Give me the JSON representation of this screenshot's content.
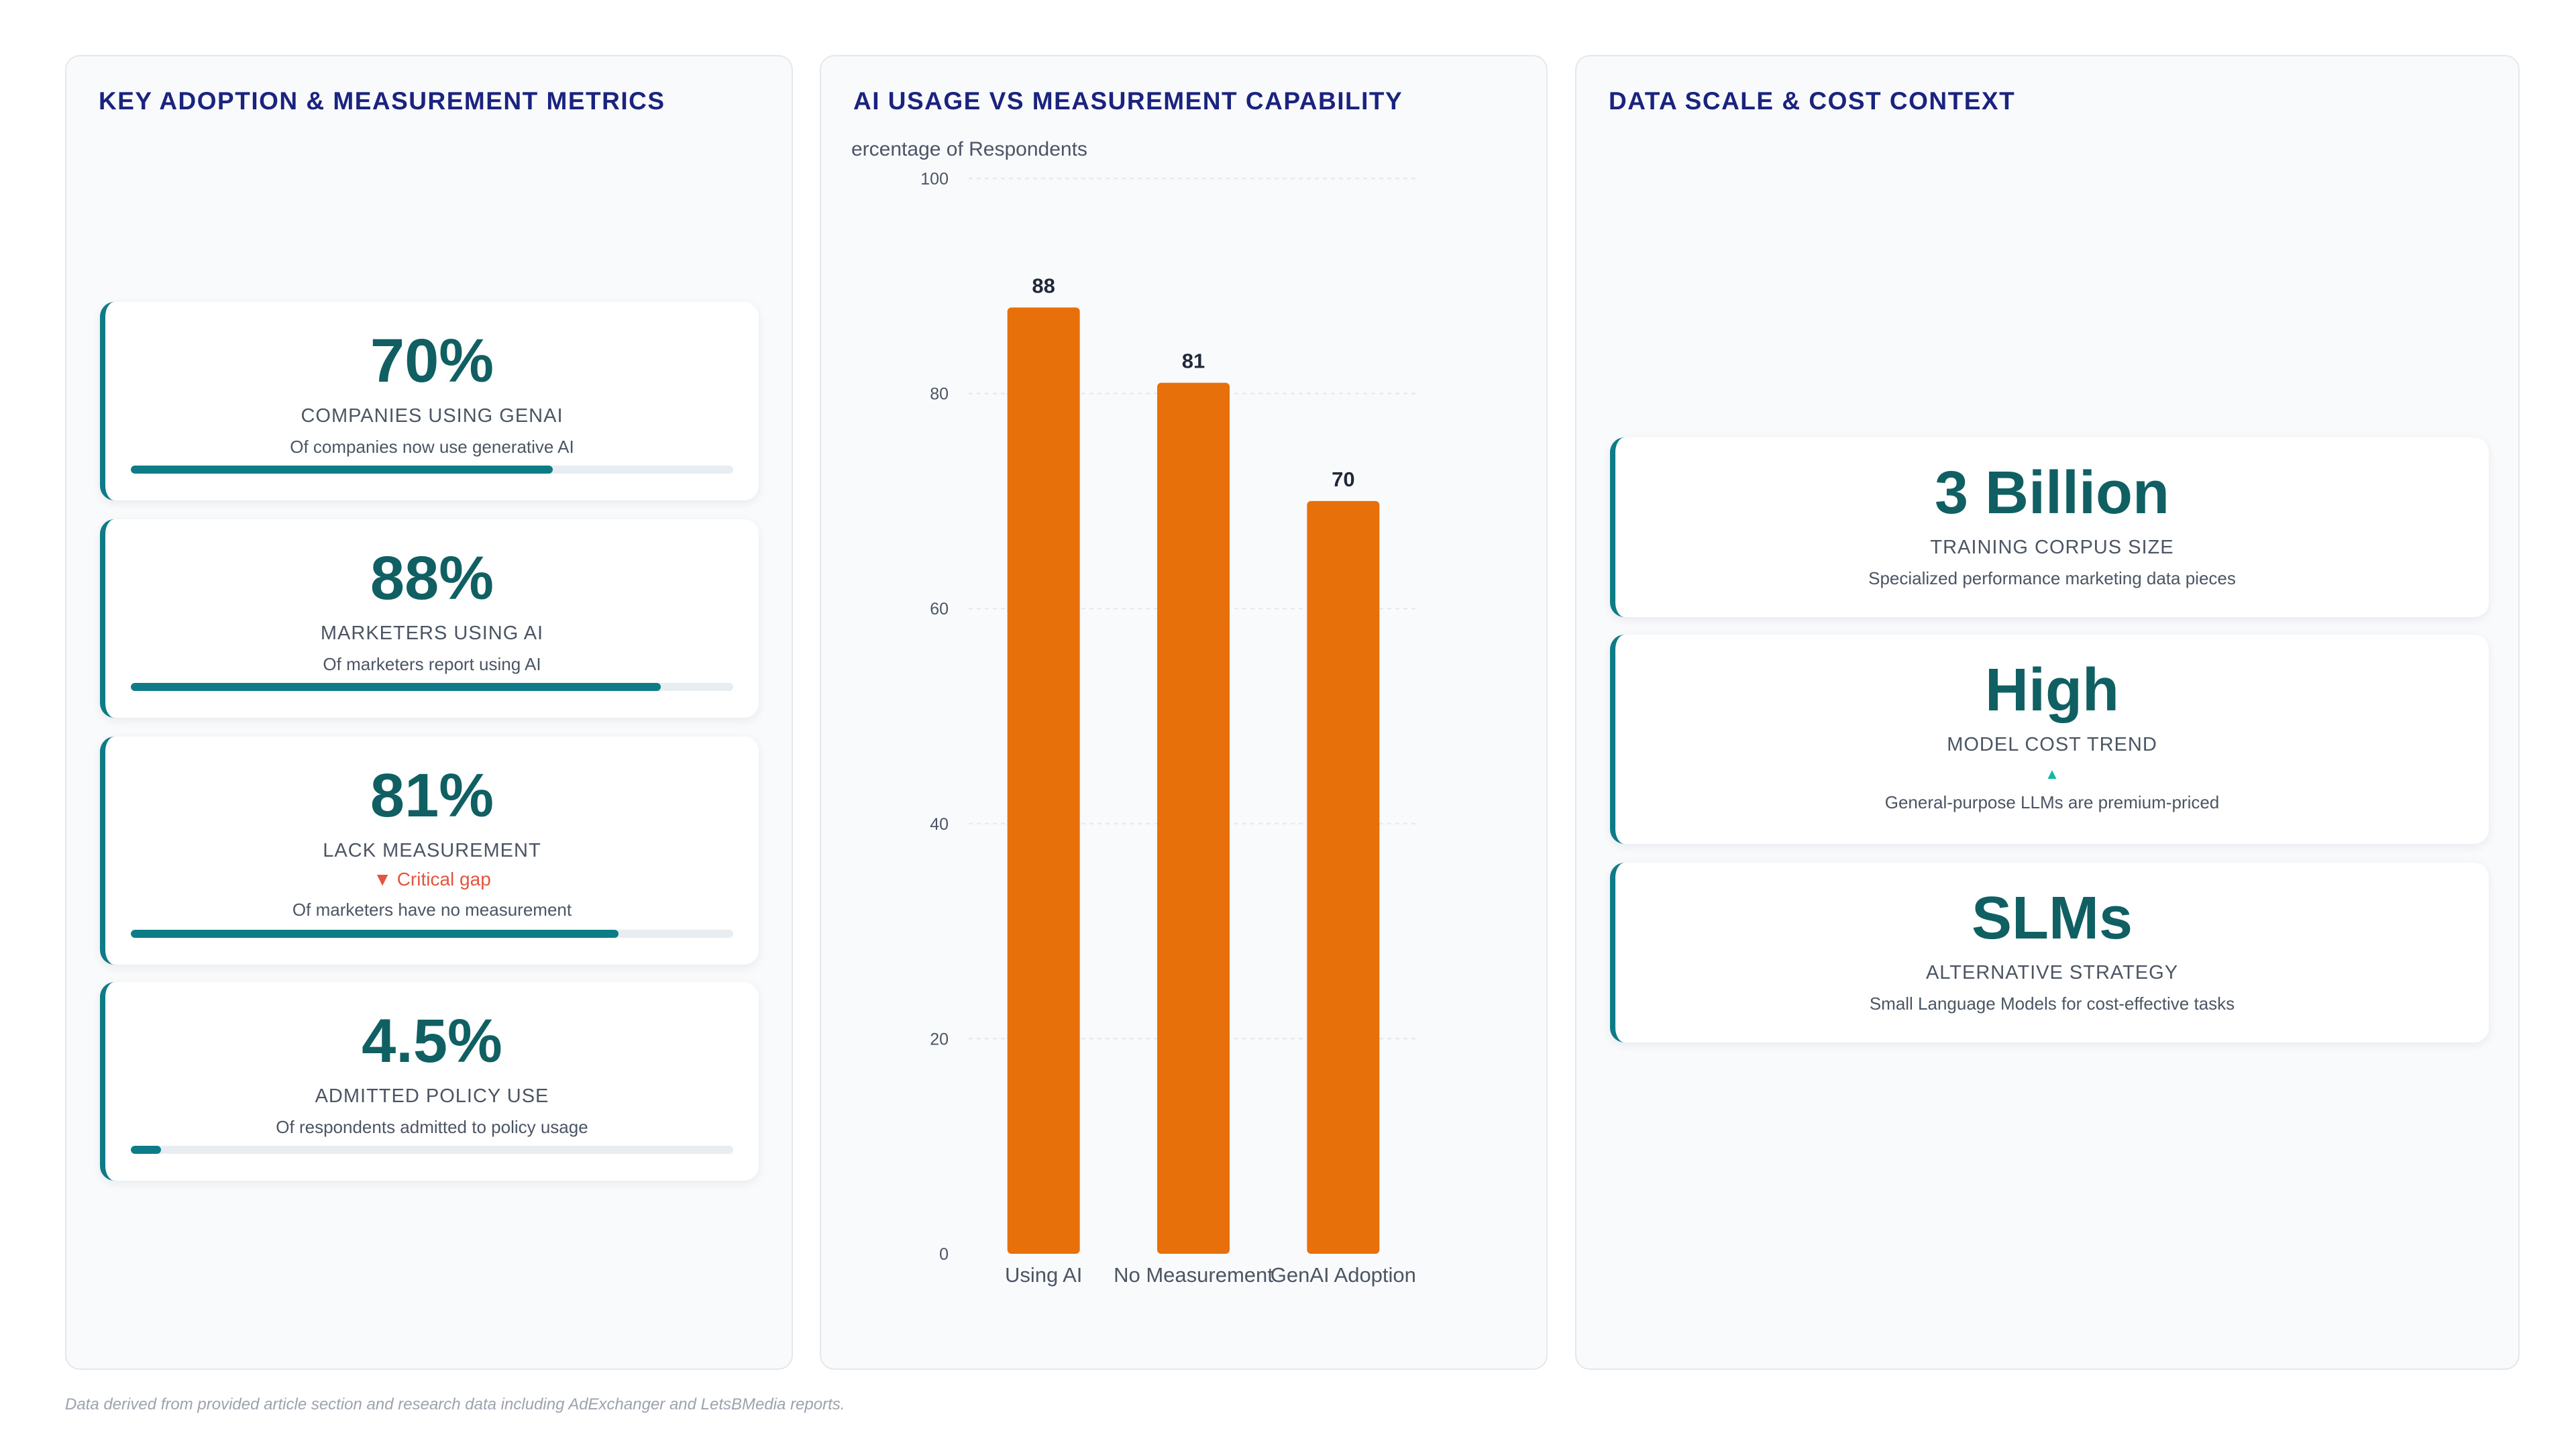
{
  "left_panel": {
    "title": "KEY ADOPTION & MEASUREMENT METRICS",
    "metrics": [
      {
        "value": "70%",
        "label": "COMPANIES USING GENAI",
        "sub": "Of companies now use generative AI",
        "progress": 0.7
      },
      {
        "value": "88%",
        "label": "MARKETERS USING AI",
        "sub": "Of marketers report using AI",
        "progress": 0.88
      },
      {
        "value": "81%",
        "label": "LACK MEASUREMENT",
        "alert": "▼ Critical gap",
        "sub": "Of marketers have no measurement",
        "progress": 0.81
      },
      {
        "value": "4.5%",
        "label": "ADMITTED POLICY USE",
        "sub": "Of respondents admitted to policy usage",
        "progress": 0.05
      }
    ]
  },
  "middle_panel": {
    "title": "AI USAGE VS MEASUREMENT CAPABILITY"
  },
  "chart_data": {
    "type": "bar",
    "categories": [
      "Using AI",
      "No Measurement",
      "GenAI Adoption"
    ],
    "values": [
      88,
      81,
      70
    ],
    "title": "",
    "ylabel": "Percentage of Respondents",
    "xlabel": "",
    "ylim": [
      0,
      100
    ],
    "yticks": [
      0,
      20,
      40,
      60,
      80,
      100
    ],
    "grid": true,
    "bar_color": "#e8700a",
    "data_labels": true
  },
  "right_panel": {
    "title": "DATA SCALE & COST CONTEXT",
    "metrics": [
      {
        "value": "3 Billion",
        "label": "TRAINING CORPUS SIZE",
        "sub": "Specialized performance marketing data pieces"
      },
      {
        "value": "High",
        "label": "MODEL COST TREND",
        "trend": "▲",
        "sub": "General-purpose LLMs are premium-priced"
      },
      {
        "value": "SLMs",
        "label": "ALTERNATIVE STRATEGY",
        "sub": "Small Language Models for cost-effective tasks"
      }
    ]
  },
  "footer": "Data derived from provided article section and research data including AdExchanger and LetsBMedia reports.",
  "colors": {
    "accent": "#0e7c86",
    "value": "#0f5f63",
    "title": "#1a237e",
    "bar": "#e8700a",
    "alert": "#e2553f"
  }
}
